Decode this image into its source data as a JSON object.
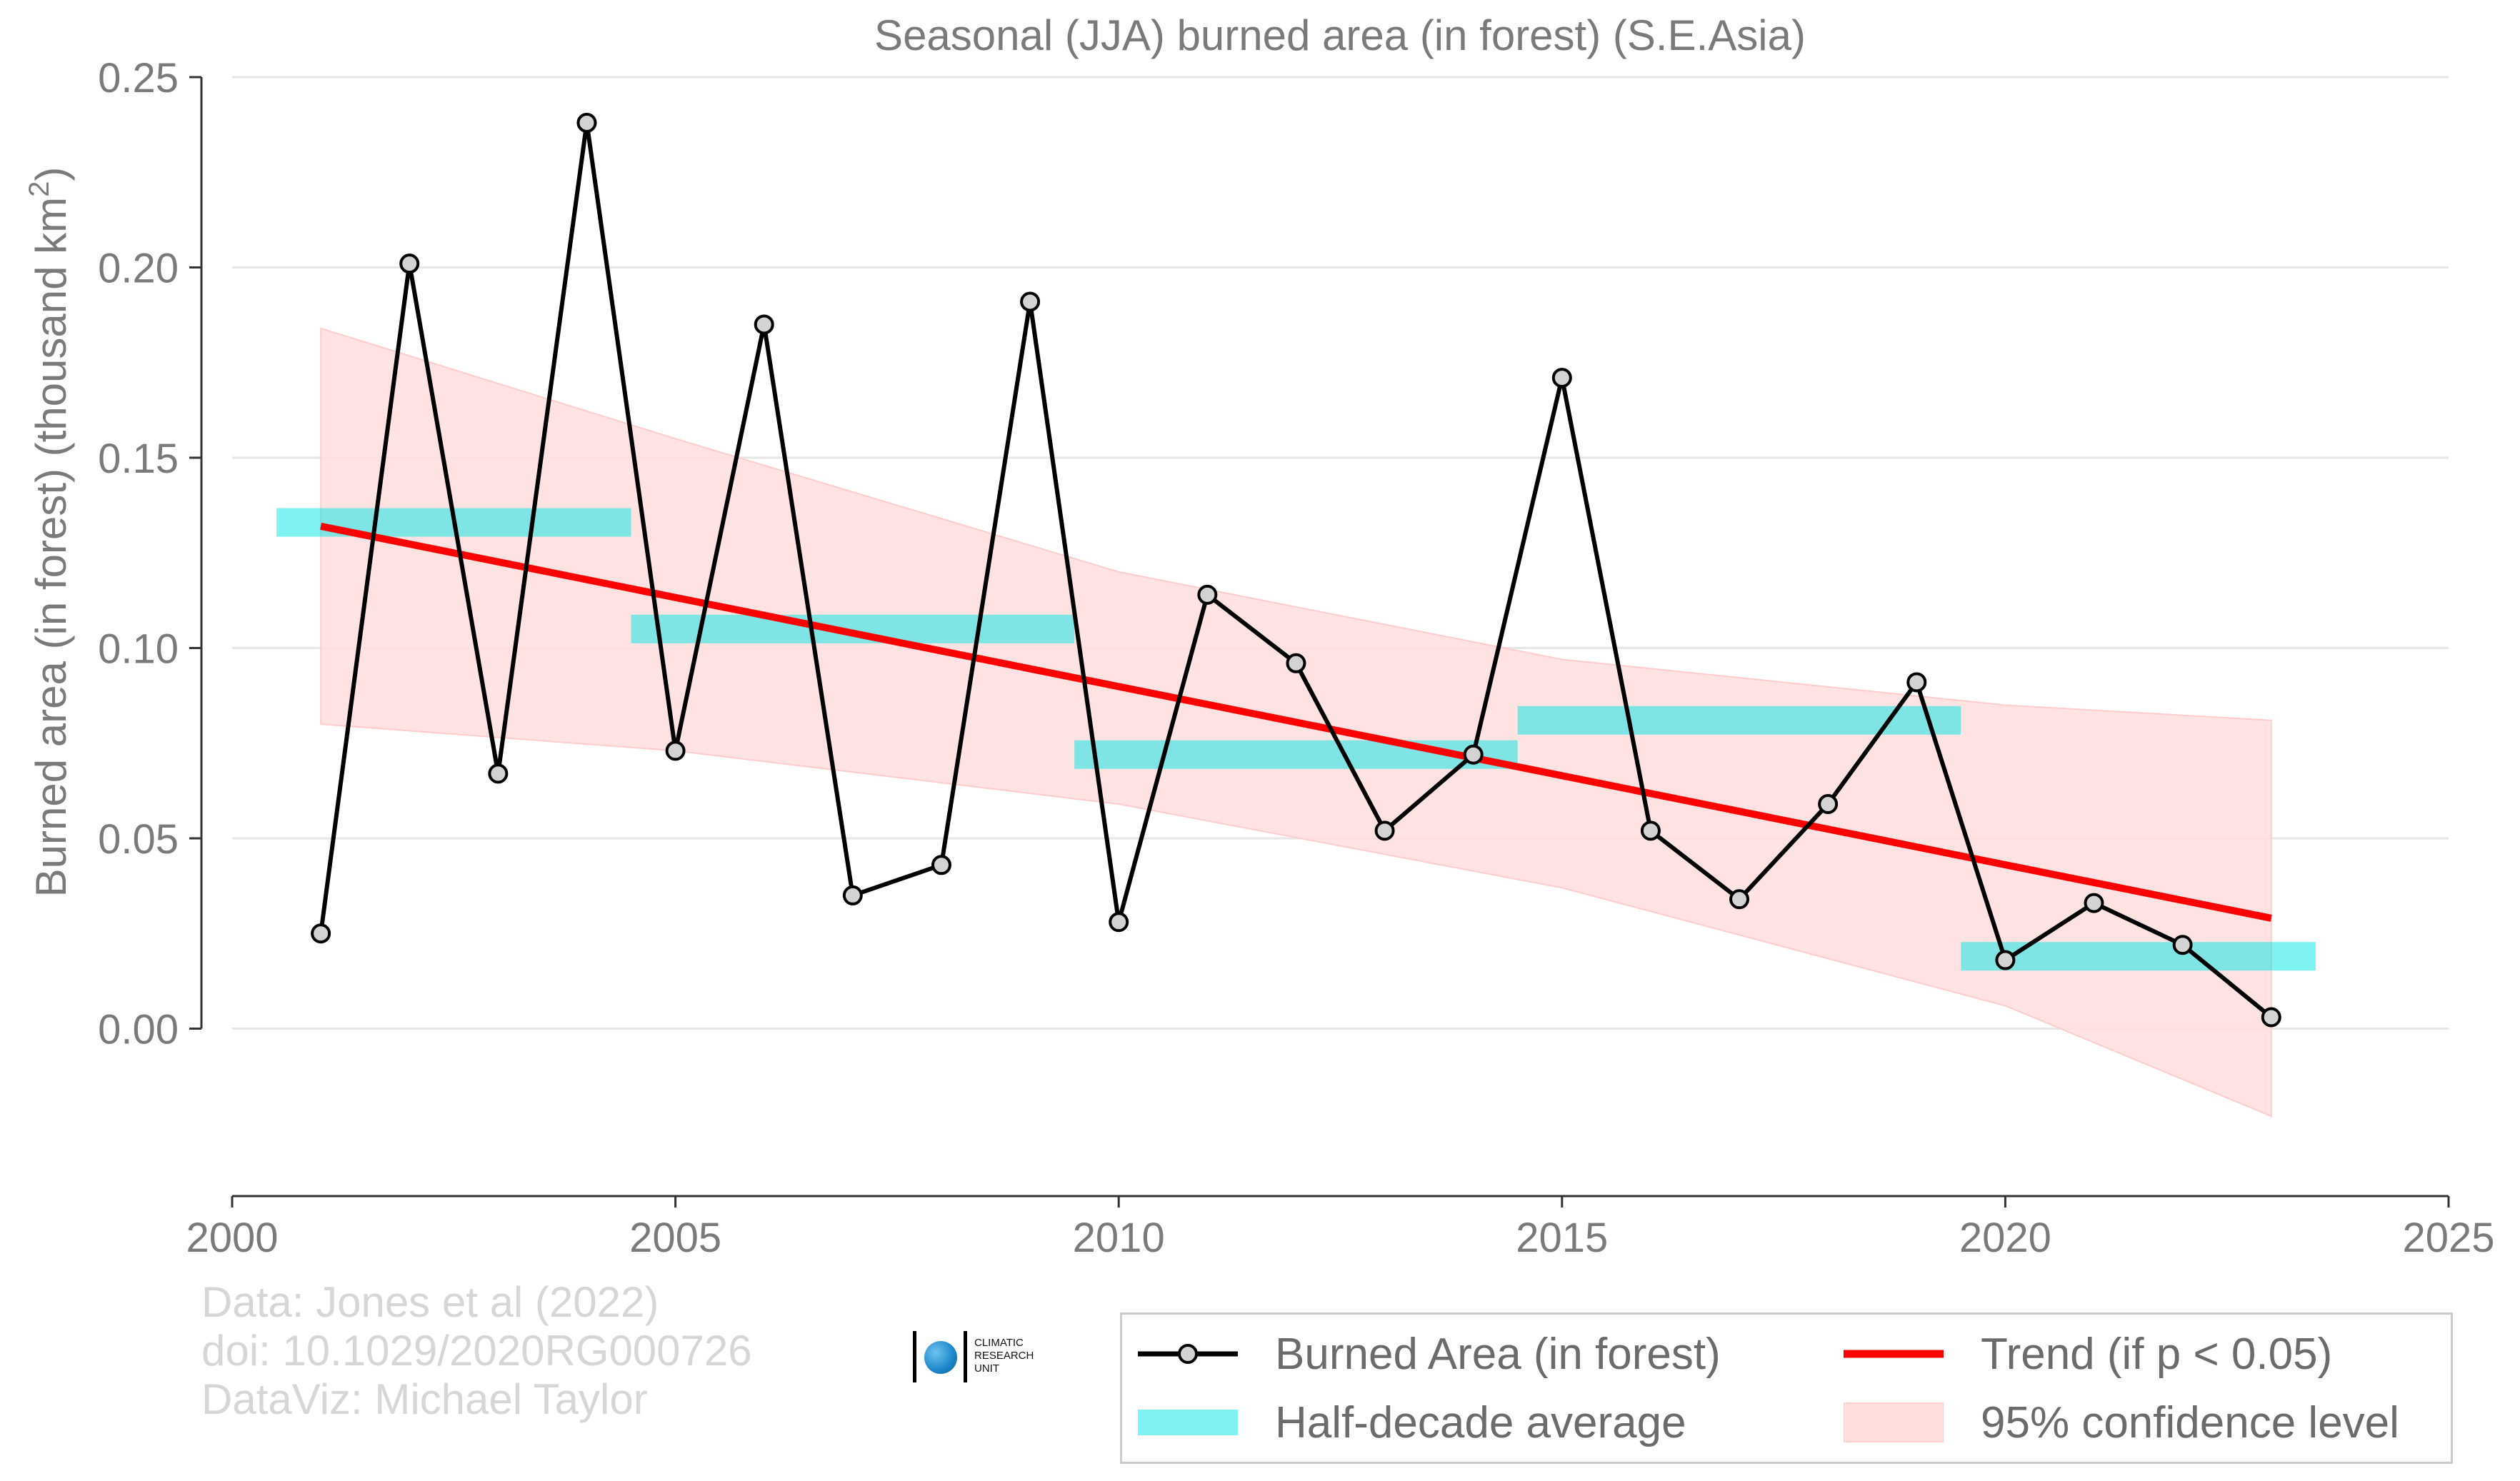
{
  "chart_data": {
    "type": "line",
    "title": "Seasonal (JJA) burned area (in forest) (S.E.Asia)",
    "ylabel": "Burned area (in forest) (thousand km",
    "ylabel_sup": "2",
    "ylabel_end": ")",
    "xlim": [
      2000,
      2025
    ],
    "ylim": [
      -0.044,
      0.25
    ],
    "x_ticks": [
      2000,
      2005,
      2010,
      2015,
      2020,
      2025
    ],
    "y_ticks": [
      0.0,
      0.05,
      0.1,
      0.15,
      0.2,
      0.25
    ],
    "y_tick_labels": [
      "0.00",
      "0.05",
      "0.10",
      "0.15",
      "0.20",
      "0.25"
    ],
    "grid": "horizontal",
    "legend_position": "bottom-right",
    "series": [
      {
        "name": "Burned Area (in forest)",
        "color": "#000000",
        "marker_fill": "#d3d3d3",
        "x": [
          2001,
          2002,
          2003,
          2004,
          2005,
          2006,
          2007,
          2008,
          2009,
          2010,
          2011,
          2012,
          2013,
          2014,
          2015,
          2016,
          2017,
          2018,
          2019,
          2020,
          2021,
          2022,
          2023
        ],
        "values": [
          0.025,
          0.201,
          0.067,
          0.238,
          0.073,
          0.185,
          0.035,
          0.043,
          0.191,
          0.028,
          0.114,
          0.096,
          0.052,
          0.072,
          0.171,
          0.052,
          0.034,
          0.059,
          0.091,
          0.018,
          0.033,
          0.022,
          0.003
        ]
      }
    ],
    "half_decade_average": {
      "name": "Half-decade average",
      "color": "#00e5e5",
      "segments": [
        {
          "x_start": 2000.5,
          "x_end": 2004.5,
          "value": 0.133
        },
        {
          "x_start": 2004.5,
          "x_end": 2009.5,
          "value": 0.105
        },
        {
          "x_start": 2009.5,
          "x_end": 2014.5,
          "value": 0.072
        },
        {
          "x_start": 2014.5,
          "x_end": 2019.5,
          "value": 0.081
        },
        {
          "x_start": 2019.5,
          "x_end": 2023.5,
          "value": 0.019
        }
      ]
    },
    "trend": {
      "name": "Trend (if p < 0.05)",
      "color": "#ff0000",
      "x": [
        2001,
        2023
      ],
      "values": [
        0.132,
        0.029
      ]
    },
    "confidence": {
      "name": "95% confidence level",
      "color": "#ffdede",
      "x": [
        2001,
        2005,
        2010,
        2015,
        2020,
        2023
      ],
      "upper": [
        0.184,
        0.155,
        0.12,
        0.097,
        0.085,
        0.081
      ],
      "lower": [
        0.08,
        0.073,
        0.059,
        0.037,
        0.006,
        -0.023
      ]
    }
  },
  "credits": {
    "line1": "Data: Jones et al (2022)",
    "line2": "doi: 10.1029/2020RG000726",
    "line3": "DataViz: Michael Taylor"
  },
  "logo": {
    "line1": "CLIMATIC",
    "line2": "RESEARCH",
    "line3": "UNIT"
  },
  "legend": {
    "burned_area": "Burned Area (in forest)",
    "trend": "Trend (if p < 0.05)",
    "half_decade": "Half-decade average",
    "confidence": "95% confidence level"
  }
}
